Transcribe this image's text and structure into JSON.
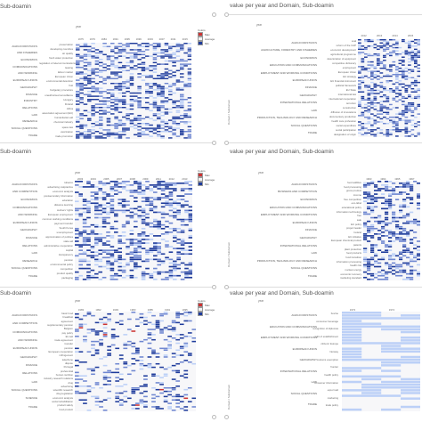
{
  "colors": {
    "max": "#cc3333",
    "average": "#f3f3f3",
    "min": "#1f3c9c",
    "light": "#bcd0f7"
  },
  "panels": [
    {
      "id": "p1",
      "title": "Sub-doamin",
      "x_axis": "year",
      "legend": {
        "title": "Colors",
        "items": [
          "Max",
          "Average",
          "Min"
        ]
      },
      "years": [
        "1975",
        "1979",
        "1984",
        "1991",
        "1995",
        "1999",
        "2003",
        "2007",
        "2011",
        "2015"
      ],
      "domains": [
        "AGRI-FOODSTUFFS",
        "AND FISHERIES",
        "ECONOMICS",
        "COMMUNICATIONS",
        "AND WORKING",
        "EUROPEAN UNION",
        "GEOGRAPHY",
        "FINANCE",
        "INDUSTRY",
        "RELATIONS",
        "LAW",
        "RESEARCH",
        "SOCIAL QUESTIONS",
        "TRADE"
      ],
      "subdomains": [
        "preservation",
        "developing countries",
        "air quality",
        "fresh water protection",
        "regulation of telecommunications",
        "leasing",
        "labour market",
        "European Union",
        "environmental detention",
        "fruit",
        "budgetary procedure",
        "unauthorised surveillance",
        "Hungary",
        "Finland",
        "Africa",
        "association agreement (EU)",
        "humanitarian aid",
        "chemical industry",
        "space law",
        "vaccination",
        "trade promotion"
      ]
    },
    {
      "id": "p2",
      "title": "value per year and Domain, Sub-doamin",
      "x_axis": "year",
      "v_axis": "Domain / Subdomain",
      "years": [
        "2012",
        "2013",
        "2014",
        "2015"
      ],
      "domains": [
        "AGRI-FOODSTUFFS",
        "AGRICULTURE, FORESTRY AND FISHERIES",
        "ECONOMICS",
        "EDUCATION AND COMMUNICATIONS",
        "EMPLOYMENT AND WORKING CONDITIONS",
        "EUROPEAN UNION",
        "FINANCE",
        "GEOGRAPHY",
        "INTERNATIONAL RELATIONS",
        "LAW",
        "PRODUCTION, TECHNOLOGY AND RESEARCH",
        "SOCIAL QUESTIONS",
        "TRADE"
      ],
      "subdomains": [
        "veal",
        "reform of the CAP",
        "economic development",
        "agricultural programme",
        "deterioration of equipment",
        "competitive dictionary",
        "employment",
        "European Union",
        "EU strategy",
        "EU financial instrument",
        "political framework",
        "EU State",
        "international law",
        "international cooperation",
        "terrorism",
        "construction",
        "diffusion of innovations",
        "documentary production",
        "health care profession",
        "social expenditure",
        "social participation",
        "designation of origin"
      ]
    },
    {
      "id": "p3",
      "title": "Sub-doamin",
      "x_axis": "year",
      "legend": {
        "title": "Colors",
        "items": [
          "Max",
          "Average",
          "Min"
        ]
      },
      "years": [
        "2003",
        "2004",
        "2005",
        "2007",
        "2008",
        "2009",
        "2011",
        "2012",
        "2013"
      ],
      "domains": [
        "AGRI-FOODSTUFFS",
        "AND COMPETITION",
        "ECONOMICS",
        "COMMUNICATIONS",
        "AND WORKING",
        "EUROPEAN UNION",
        "GEOGRAPHY",
        "FINANCE",
        "RELATIONS",
        "LAW",
        "RESEARCH",
        "SOCIAL QUESTIONS",
        "TRADE"
      ],
      "subdomains": [
        "tobacco",
        "advertising malpractice",
        "economic analysis",
        "postsecondary information",
        "education",
        "distance learning",
        "workers' rights",
        "European employment",
        "common working conditions",
        "payment transfer",
        "South Korea",
        "unemployment",
        "approximation of policies",
        "state aid",
        "administrative cooperation",
        "capital",
        "transparency",
        "pension",
        "environmental policy",
        "competition",
        "product quality",
        "packaging"
      ]
    },
    {
      "id": "p4",
      "title": "value per year and Domain, Sub-doamin",
      "x_axis": "year",
      "v_axis": "Domain / Subdomain",
      "years": [
        "1993",
        "1994",
        "1995",
        "1997"
      ],
      "domains": [
        "AGRI-FOODSTUFFS",
        "BUSINESS AND COMPETITION",
        "ECONOMICS",
        "EDUCATION AND COMMUNICATIONS",
        "EMPLOYMENT AND WORKING CONDITIONS",
        "EUROPEAN UNION",
        "FINANCE",
        "GEOGRAPHY",
        "INTERNATIONAL RELATIONS",
        "LAW",
        "PRODUCTION, TECHNOLOGY AND RESEARCH",
        "SOCIAL QUESTIONS",
        "TRADE"
      ],
      "subdomains": [
        "food additive",
        "food processing",
        "gross product",
        "income",
        "free competition",
        "eco-label",
        "educational policy",
        "information technology",
        "free",
        "sale",
        "EU policy",
        "project leader",
        "Ireland",
        "EU initiative",
        "European chemical product",
        "patents",
        "plant protection",
        "food products",
        "food transition",
        "information processing",
        "health risk",
        "nuclear energy",
        "economic recovery",
        "marketing standard"
      ]
    },
    {
      "id": "p5",
      "title": "Sub-doamin",
      "x_axis": "year",
      "legend": {
        "title": "Colors",
        "items": [
          "Max",
          "Average",
          "Min"
        ]
      },
      "years": [
        "1983",
        "1992",
        "1993",
        "1983",
        "1985",
        "1991",
        "1995"
      ],
      "domains": [
        "AGRI-FOODSTUFFS",
        "AND COMPETITION",
        "COMMUNICATIONS",
        "AND WORKING",
        "EUROPEAN UNION",
        "GEOGRAPHY",
        "FINANCE",
        "RELATIONS",
        "LAW",
        "SOCIAL QUESTIONS",
        "SCIENCE",
        "TRADE"
      ],
      "subdomains": [
        "basic food",
        "breakfast",
        "agreement",
        "supplementary pension",
        "Belgium",
        "pay policy",
        "EU aid",
        "trade agreement",
        "transfer",
        "pension",
        "European cooperation",
        "infringement",
        "telephone",
        "dispute",
        "Portugal",
        "preferential",
        "human nutrition",
        "industry research relations",
        "drug",
        "advertising",
        "scientific research",
        "drug legislation",
        "economic analysis",
        "social rehabilitation",
        "product safety",
        "food product"
      ]
    },
    {
      "id": "p6",
      "title": "value per year and Domain, Sub-doamin",
      "x_axis": "year",
      "v_axis": "Domain / Subdomain",
      "years": [
        "1973",
        "1974"
      ],
      "domains": [
        "AGRI-FOODSTUFFS",
        "EDUCATION AND COMMUNICATIONS",
        "EMPLOYMENT AND WORKING CONDITIONS",
        "EUROPEAN UNION",
        "GEOGRAPHY",
        "INTERNATIONAL RELATIONS",
        "LAW",
        "SOCIAL QUESTIONS",
        "TRADE"
      ],
      "subdomains": [
        "bovine",
        "consumer beverage",
        "recognition of diplomas",
        "right of establishment",
        "citizens' Europe",
        "Norway",
        "customs exemption",
        "frontier",
        "health policy",
        "consumer information",
        "export aid",
        "marketing",
        "trade policy"
      ]
    }
  ]
}
